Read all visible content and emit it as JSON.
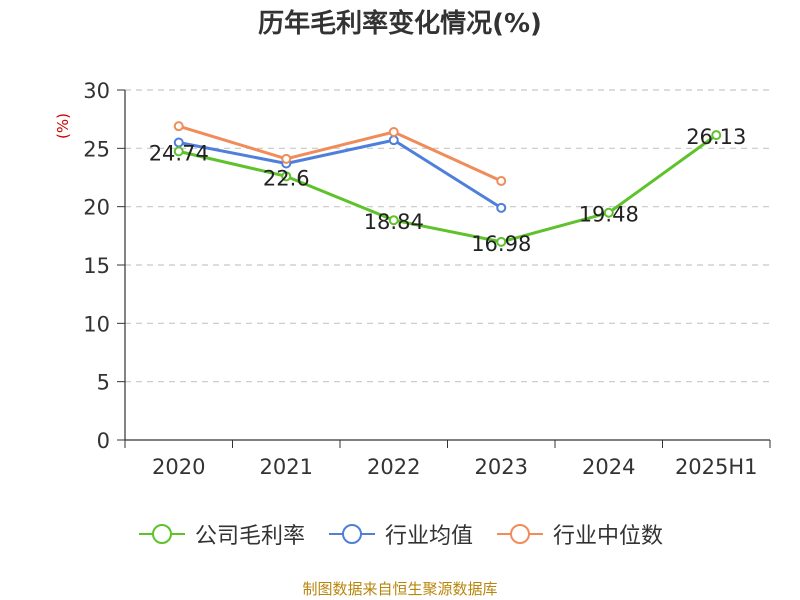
{
  "chart_data": {
    "type": "line",
    "title": "历年毛利率变化情况(%)",
    "ylabel": "(%)",
    "xlabel": "",
    "categories": [
      "2020",
      "2021",
      "2022",
      "2023",
      "2024",
      "2025H1"
    ],
    "ylim": [
      0,
      30
    ],
    "yticks": [
      0,
      5,
      10,
      15,
      20,
      25,
      30
    ],
    "grid": true,
    "legend_position": "bottom",
    "series": [
      {
        "name": "公司毛利率",
        "color": "#5ec22b",
        "values": [
          24.74,
          22.6,
          18.84,
          16.98,
          19.48,
          26.13
        ],
        "labels": [
          "24.74",
          "22.6",
          "18.84",
          "16.98",
          "19.48",
          "26.13"
        ]
      },
      {
        "name": "行业均值",
        "color": "#4e7fdb",
        "values": [
          25.5,
          23.7,
          25.7,
          19.9,
          null,
          null
        ]
      },
      {
        "name": "行业中位数",
        "color": "#f08c5a",
        "values": [
          26.9,
          24.1,
          26.4,
          22.2,
          null,
          null
        ]
      }
    ]
  },
  "footer": {
    "source": "制图数据来自恒生聚源数据库"
  }
}
